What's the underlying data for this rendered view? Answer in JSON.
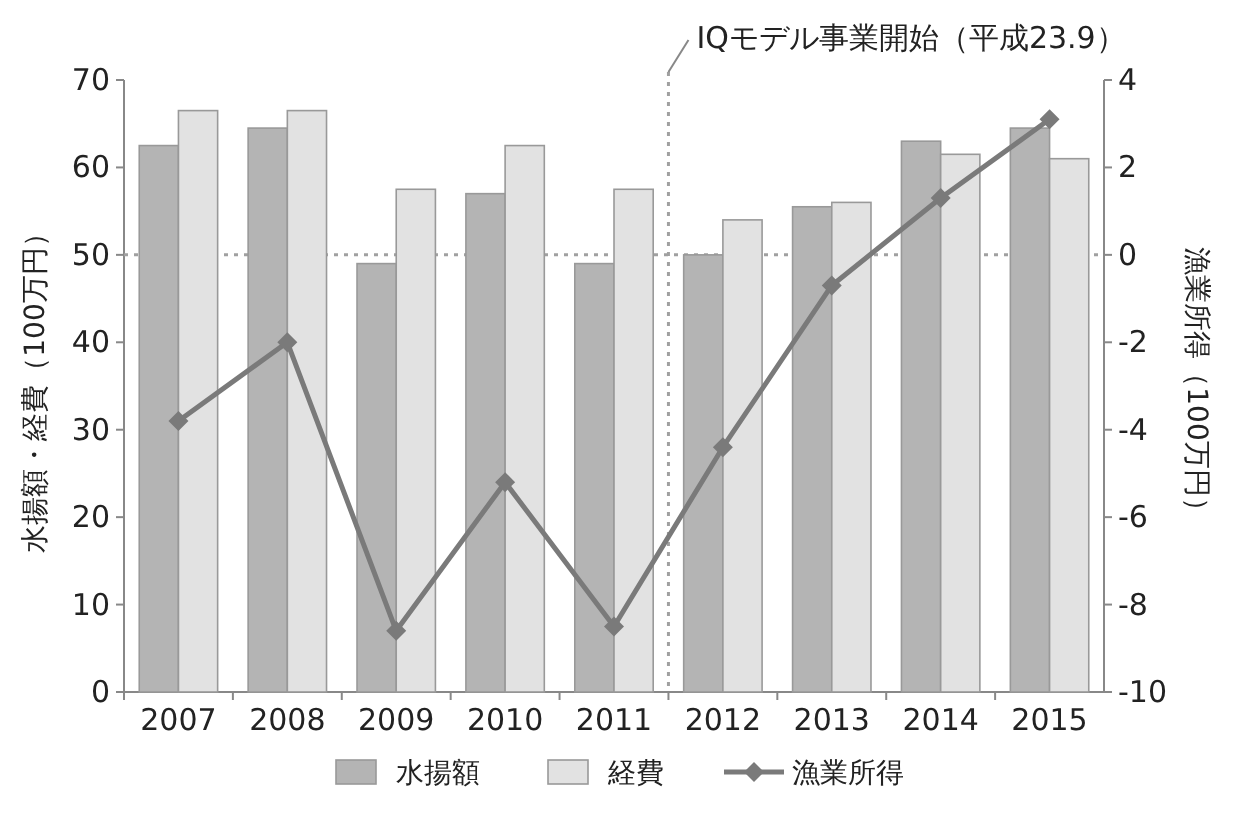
{
  "chart_data": {
    "type": "bar",
    "categories": [
      "2007",
      "2008",
      "2009",
      "2010",
      "2011",
      "2012",
      "2013",
      "2014",
      "2015"
    ],
    "ylabel": "水揚額・経費（100万円）",
    "y2label": "漁業所得（100万円）",
    "series": [
      {
        "name": "水揚額",
        "color": "#b4b4b4",
        "values": [
          62.5,
          64.5,
          49,
          57,
          49,
          50,
          55.5,
          63,
          64.5
        ]
      },
      {
        "name": "経費",
        "color": "#e2e2e2",
        "values": [
          66.5,
          66.5,
          57.5,
          62.5,
          57.5,
          54,
          56,
          61.5,
          61
        ]
      },
      {
        "name": "漁業所得",
        "type": "line",
        "axis": "y2",
        "color": "#7a7a7a",
        "marker": "diamond",
        "line_style": "solid",
        "values": [
          -3.8,
          -2.0,
          -8.6,
          -5.2,
          -8.5,
          -4.4,
          -0.7,
          1.3,
          3.1
        ]
      }
    ],
    "ylim": [
      0,
      70
    ],
    "yticks": [
      0,
      10,
      20,
      30,
      40,
      50,
      60,
      70
    ],
    "y2lim": [
      -10,
      4
    ],
    "y2ticks": [
      -10,
      -8,
      -6,
      -4,
      -2,
      0,
      2,
      4
    ],
    "ref_lines": [
      {
        "axis": "y2",
        "value": 0,
        "color": "#a0a0a0",
        "line_style": "dotted"
      }
    ],
    "annotations": [
      "IQモデル事業開始（平成23.9）"
    ],
    "grid": false,
    "legend": "bottom"
  }
}
